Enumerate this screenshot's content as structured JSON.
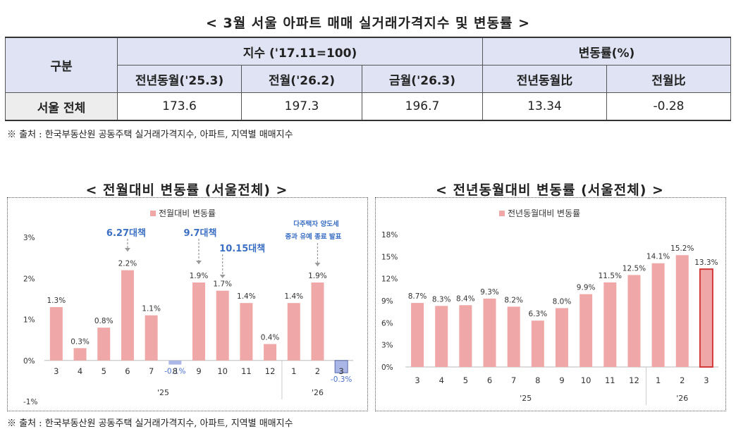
{
  "title": "< 3월 서울 아파트 매매 실거래가격지수 및 변동률 >",
  "table": {
    "h_gubun": "구분",
    "h_index": "지수 ('17.11=100)",
    "h_change": "변동률(%)",
    "sub": [
      "전년동월('25.3)",
      "전월('26.2)",
      "금월('26.3)",
      "전년동월比",
      "전월比"
    ],
    "row_label": "서울 전체",
    "row_values": [
      "173.6",
      "197.3",
      "196.7",
      "13.34",
      "-0.28"
    ]
  },
  "source_top": "※ 출처 : 한국부동산원 공동주택 실거래가격지수, 아파트, 지역별 매매지수",
  "source_bottom": "※ 출처 : 한국부동산원 공동주택 실거래가격지수, 아파트, 지역별 매매지수",
  "colors": {
    "bar": "#f0a7a7",
    "neg_bar": "#a9b6e6",
    "neg_label": "#4a6fd0",
    "annot": "#3b6fc4",
    "last_bar_border": "#d23a3a",
    "header_bg": "#dfe3f3"
  },
  "chart_data": [
    {
      "type": "bar",
      "title": "< 전월대비 변동률 (서울전체) >",
      "legend": "전월대비 변동률",
      "legend_position": "top",
      "categories": [
        "3",
        "4",
        "5",
        "6",
        "7",
        "8",
        "9",
        "10",
        "11",
        "12",
        "1",
        "2",
        "3"
      ],
      "year_labels": [
        "'25",
        "'26"
      ],
      "values": [
        1.3,
        0.3,
        0.8,
        2.2,
        1.1,
        -0.1,
        1.9,
        1.7,
        1.4,
        0.4,
        1.4,
        1.9,
        -0.3
      ],
      "value_labels": [
        "1.3%",
        "0.3%",
        "0.8%",
        "2.2%",
        "1.1%",
        "-0.1%",
        "1.9%",
        "1.7%",
        "1.4%",
        "0.4%",
        "1.4%",
        "1.9%",
        "-0.3%"
      ],
      "ylim": [
        -1,
        3
      ],
      "yticks": [
        "3%",
        "2%",
        "1%",
        "0%",
        "-1%"
      ],
      "annotations": [
        {
          "text": "6.27대책",
          "at": "6"
        },
        {
          "text": "9.7대책",
          "at": "9"
        },
        {
          "text": "10.15대책",
          "at": "10"
        },
        {
          "text": "다주택자 양도세",
          "at": "2"
        },
        {
          "text": "중과 유예 종료 발표",
          "at": "2"
        }
      ]
    },
    {
      "type": "bar",
      "title": "< 전년동월대비 변동률 (서울전체) >",
      "legend": "전년동월대비 변동률",
      "legend_position": "top",
      "categories": [
        "3",
        "4",
        "5",
        "6",
        "7",
        "8",
        "9",
        "10",
        "11",
        "12",
        "1",
        "2",
        "3"
      ],
      "year_labels": [
        "'25",
        "'26"
      ],
      "values": [
        8.7,
        8.3,
        8.4,
        9.3,
        8.2,
        6.3,
        8.0,
        9.9,
        11.5,
        12.5,
        14.1,
        15.2,
        13.3
      ],
      "value_labels": [
        "8.7%",
        "8.3%",
        "8.4%",
        "9.3%",
        "8.2%",
        "6.3%",
        "8.0%",
        "9.9%",
        "11.5%",
        "12.5%",
        "14.1%",
        "15.2%",
        "13.3%"
      ],
      "ylim": [
        0,
        18
      ],
      "yticks": [
        "18%",
        "15%",
        "12%",
        "9%",
        "6%",
        "3%",
        "0%"
      ]
    }
  ]
}
